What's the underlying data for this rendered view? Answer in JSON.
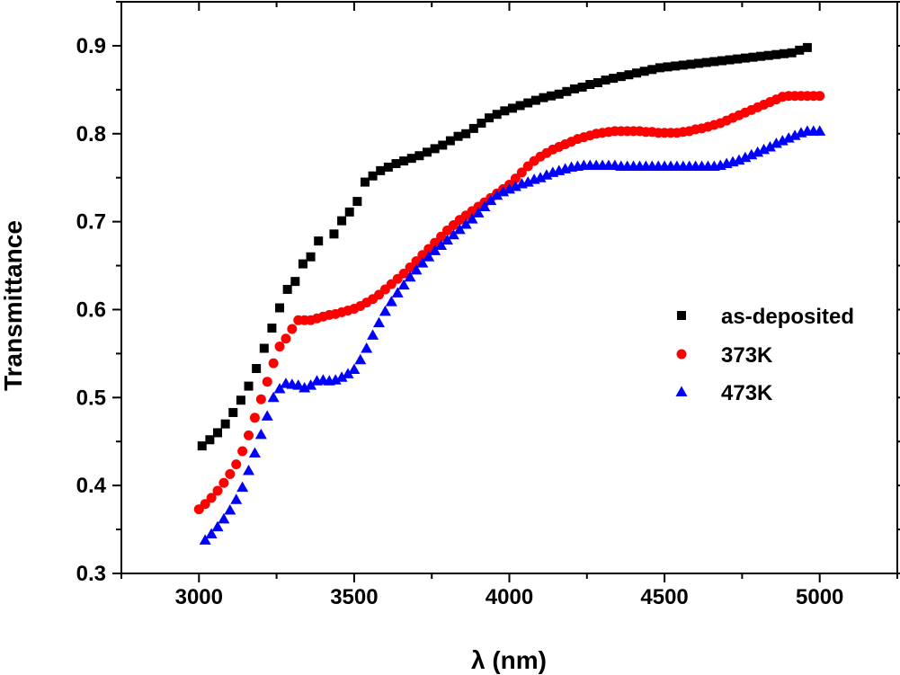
{
  "chart_data": {
    "type": "scatter",
    "title": "",
    "xlabel": "λ (nm)",
    "ylabel": "Transmittance",
    "xlim": [
      2750,
      5250
    ],
    "ylim": [
      0.3,
      0.95
    ],
    "x_ticks": [
      3000,
      3500,
      4000,
      4500,
      5000
    ],
    "x_tick_labels": [
      "3000",
      "3500",
      "4000",
      "4500",
      "5000"
    ],
    "y_ticks": [
      0.3,
      0.4,
      0.5,
      0.6,
      0.7,
      0.8,
      0.9
    ],
    "y_tick_labels": [
      "0.3",
      "0.4",
      "0.5",
      "0.6",
      "0.7",
      "0.8",
      "0.9"
    ],
    "grid": false,
    "legend_position": "right",
    "series": [
      {
        "name": "as-deposited",
        "marker": "square",
        "color": "#000000",
        "x": [
          3010,
          3035,
          3060,
          3085,
          3110,
          3135,
          3160,
          3185,
          3210,
          3235,
          3260,
          3285,
          3310,
          3335,
          3360,
          3385,
          3435,
          3460,
          3485,
          3510,
          3535,
          3560,
          3585,
          3610,
          3635,
          3660,
          3685,
          3710,
          3735,
          3760,
          3785,
          3810,
          3835,
          3860,
          3885,
          3910,
          3935,
          3960,
          3985,
          4010,
          4035,
          4060,
          4085,
          4110,
          4135,
          4160,
          4185,
          4210,
          4235,
          4260,
          4285,
          4310,
          4335,
          4360,
          4385,
          4410,
          4435,
          4460,
          4485,
          4510,
          4535,
          4560,
          4585,
          4610,
          4635,
          4660,
          4685,
          4710,
          4735,
          4760,
          4785,
          4810,
          4835,
          4860,
          4885,
          4910,
          4935,
          4960
        ],
        "y": [
          0.445,
          0.452,
          0.46,
          0.47,
          0.483,
          0.497,
          0.513,
          0.533,
          0.556,
          0.579,
          0.602,
          0.623,
          0.632,
          0.652,
          0.66,
          0.678,
          0.686,
          0.701,
          0.711,
          0.723,
          0.745,
          0.752,
          0.758,
          0.762,
          0.766,
          0.769,
          0.772,
          0.775,
          0.779,
          0.783,
          0.787,
          0.792,
          0.797,
          0.8,
          0.806,
          0.812,
          0.818,
          0.822,
          0.826,
          0.829,
          0.832,
          0.835,
          0.838,
          0.841,
          0.843,
          0.845,
          0.848,
          0.851,
          0.853,
          0.856,
          0.858,
          0.861,
          0.863,
          0.865,
          0.867,
          0.869,
          0.871,
          0.873,
          0.875,
          0.876,
          0.877,
          0.878,
          0.879,
          0.88,
          0.881,
          0.882,
          0.883,
          0.884,
          0.885,
          0.886,
          0.887,
          0.888,
          0.889,
          0.89,
          0.891,
          0.892,
          0.895,
          0.898
        ]
      },
      {
        "name": "373K",
        "marker": "circle",
        "color": "#ff0000",
        "x": [
          3000,
          3020,
          3040,
          3060,
          3080,
          3100,
          3120,
          3140,
          3160,
          3180,
          3200,
          3220,
          3240,
          3260,
          3280,
          3300,
          3320,
          3340,
          3360,
          3380,
          3400,
          3420,
          3440,
          3460,
          3480,
          3500,
          3520,
          3540,
          3560,
          3580,
          3600,
          3620,
          3640,
          3660,
          3680,
          3700,
          3720,
          3740,
          3760,
          3780,
          3800,
          3820,
          3840,
          3860,
          3880,
          3900,
          3920,
          3940,
          3960,
          3980,
          4000,
          4020,
          4040,
          4060,
          4080,
          4100,
          4120,
          4140,
          4160,
          4180,
          4200,
          4220,
          4240,
          4260,
          4280,
          4300,
          4320,
          4340,
          4360,
          4380,
          4400,
          4420,
          4440,
          4460,
          4480,
          4500,
          4520,
          4540,
          4560,
          4580,
          4600,
          4620,
          4640,
          4660,
          4680,
          4700,
          4720,
          4740,
          4760,
          4780,
          4800,
          4820,
          4840,
          4860,
          4880,
          4900,
          4920,
          4940,
          4960,
          4980,
          5000
        ],
        "y": [
          0.373,
          0.379,
          0.386,
          0.394,
          0.403,
          0.413,
          0.424,
          0.439,
          0.457,
          0.477,
          0.498,
          0.518,
          0.539,
          0.558,
          0.567,
          0.578,
          0.588,
          0.588,
          0.588,
          0.59,
          0.592,
          0.594,
          0.595,
          0.597,
          0.599,
          0.601,
          0.604,
          0.608,
          0.612,
          0.617,
          0.623,
          0.629,
          0.635,
          0.641,
          0.648,
          0.655,
          0.662,
          0.669,
          0.676,
          0.683,
          0.69,
          0.696,
          0.702,
          0.707,
          0.712,
          0.717,
          0.722,
          0.727,
          0.732,
          0.737,
          0.742,
          0.749,
          0.756,
          0.763,
          0.769,
          0.774,
          0.778,
          0.782,
          0.785,
          0.788,
          0.791,
          0.794,
          0.796,
          0.798,
          0.8,
          0.801,
          0.802,
          0.803,
          0.803,
          0.803,
          0.803,
          0.803,
          0.802,
          0.802,
          0.801,
          0.801,
          0.801,
          0.801,
          0.802,
          0.803,
          0.805,
          0.806,
          0.808,
          0.81,
          0.812,
          0.815,
          0.818,
          0.821,
          0.824,
          0.827,
          0.83,
          0.833,
          0.836,
          0.839,
          0.842,
          0.843,
          0.843,
          0.843,
          0.843,
          0.843,
          0.843
        ]
      },
      {
        "name": "473K",
        "marker": "triangle",
        "color": "#0000ff",
        "x": [
          3020,
          3040,
          3060,
          3080,
          3100,
          3120,
          3140,
          3160,
          3180,
          3200,
          3220,
          3240,
          3260,
          3280,
          3300,
          3320,
          3340,
          3360,
          3380,
          3400,
          3420,
          3440,
          3460,
          3480,
          3500,
          3520,
          3540,
          3560,
          3580,
          3600,
          3620,
          3640,
          3660,
          3680,
          3700,
          3720,
          3740,
          3760,
          3780,
          3800,
          3820,
          3840,
          3860,
          3880,
          3900,
          3920,
          3940,
          3960,
          3980,
          4000,
          4020,
          4040,
          4060,
          4080,
          4100,
          4120,
          4140,
          4160,
          4180,
          4200,
          4220,
          4240,
          4260,
          4280,
          4300,
          4320,
          4340,
          4360,
          4380,
          4400,
          4420,
          4440,
          4460,
          4480,
          4500,
          4520,
          4540,
          4560,
          4580,
          4600,
          4620,
          4640,
          4660,
          4680,
          4700,
          4720,
          4740,
          4760,
          4780,
          4800,
          4820,
          4840,
          4860,
          4880,
          4900,
          4920,
          4940,
          4960,
          4980,
          5000
        ],
        "y": [
          0.338,
          0.345,
          0.353,
          0.362,
          0.372,
          0.384,
          0.398,
          0.417,
          0.437,
          0.458,
          0.479,
          0.5,
          0.51,
          0.516,
          0.515,
          0.514,
          0.511,
          0.514,
          0.519,
          0.52,
          0.519,
          0.52,
          0.523,
          0.527,
          0.532,
          0.543,
          0.556,
          0.571,
          0.585,
          0.598,
          0.609,
          0.619,
          0.628,
          0.637,
          0.645,
          0.653,
          0.66,
          0.667,
          0.673,
          0.679,
          0.685,
          0.691,
          0.697,
          0.703,
          0.71,
          0.717,
          0.724,
          0.73,
          0.734,
          0.737,
          0.74,
          0.743,
          0.745,
          0.748,
          0.75,
          0.753,
          0.756,
          0.758,
          0.76,
          0.762,
          0.763,
          0.764,
          0.764,
          0.764,
          0.764,
          0.764,
          0.764,
          0.763,
          0.763,
          0.763,
          0.763,
          0.763,
          0.763,
          0.763,
          0.763,
          0.763,
          0.763,
          0.763,
          0.763,
          0.763,
          0.763,
          0.763,
          0.763,
          0.764,
          0.766,
          0.768,
          0.77,
          0.773,
          0.776,
          0.779,
          0.782,
          0.785,
          0.789,
          0.792,
          0.795,
          0.798,
          0.801,
          0.803,
          0.803,
          0.803
        ]
      }
    ]
  }
}
